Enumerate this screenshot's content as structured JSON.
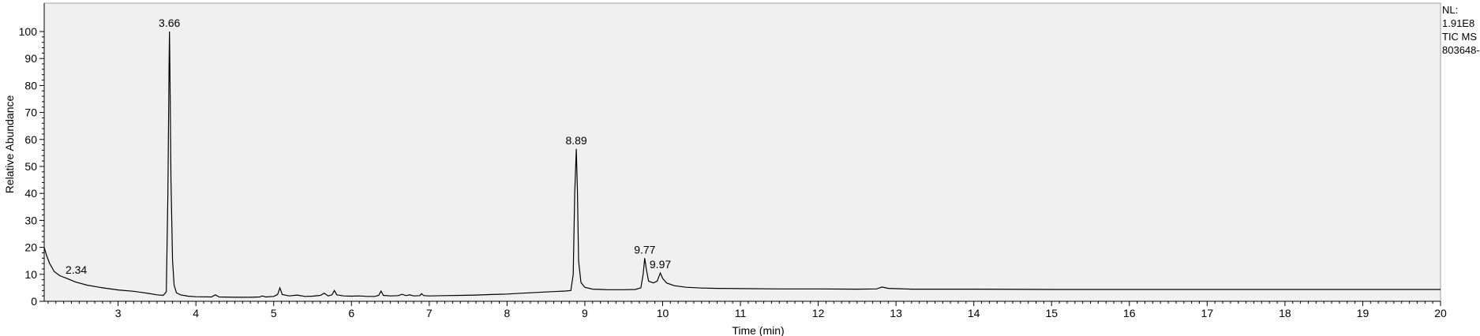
{
  "header": {
    "info_lines": [
      "NL:",
      "1.91E8",
      "TIC MS",
      "803648-"
    ]
  },
  "chart_data": {
    "type": "line",
    "title": "",
    "xlabel": "Time (min)",
    "ylabel": "Relative Abundance",
    "xlim": [
      2.05,
      20.0
    ],
    "ylim": [
      0,
      100
    ],
    "grid": false,
    "x_ticks": [
      3,
      4,
      5,
      6,
      7,
      8,
      9,
      10,
      11,
      12,
      13,
      14,
      15,
      16,
      17,
      18,
      19,
      20
    ],
    "y_ticks": [
      0,
      10,
      20,
      30,
      40,
      50,
      60,
      70,
      80,
      90,
      100
    ],
    "peak_labels": [
      {
        "label": "2.34",
        "x": 2.34,
        "y": 8.5
      },
      {
        "label": "3.66",
        "x": 3.66,
        "y": 100
      },
      {
        "label": "8.89",
        "x": 8.89,
        "y": 56.5
      },
      {
        "label": "9.77",
        "x": 9.77,
        "y": 16
      },
      {
        "label": "9.97",
        "x": 9.97,
        "y": 10.5
      }
    ],
    "series": [
      {
        "line_color": "#000000",
        "points": [
          [
            2.05,
            20
          ],
          [
            2.08,
            17
          ],
          [
            2.12,
            14
          ],
          [
            2.18,
            11
          ],
          [
            2.25,
            9.5
          ],
          [
            2.34,
            8.5
          ],
          [
            2.45,
            7.2
          ],
          [
            2.6,
            6.0
          ],
          [
            2.8,
            5.0
          ],
          [
            3.0,
            4.2
          ],
          [
            3.2,
            3.7
          ],
          [
            3.3,
            3.3
          ],
          [
            3.4,
            2.9
          ],
          [
            3.5,
            2.4
          ],
          [
            3.58,
            2.2
          ],
          [
            3.62,
            3.5
          ],
          [
            3.64,
            40
          ],
          [
            3.655,
            88
          ],
          [
            3.66,
            100
          ],
          [
            3.665,
            88
          ],
          [
            3.68,
            45
          ],
          [
            3.7,
            15
          ],
          [
            3.72,
            6
          ],
          [
            3.75,
            3.2
          ],
          [
            3.8,
            2.4
          ],
          [
            3.9,
            1.9
          ],
          [
            4.0,
            1.7
          ],
          [
            4.2,
            1.6
          ],
          [
            4.25,
            2.4
          ],
          [
            4.3,
            1.6
          ],
          [
            4.5,
            1.5
          ],
          [
            4.7,
            1.5
          ],
          [
            4.82,
            1.6
          ],
          [
            4.85,
            2.0
          ],
          [
            4.9,
            1.6
          ],
          [
            5.0,
            1.8
          ],
          [
            5.05,
            2.5
          ],
          [
            5.08,
            5.0
          ],
          [
            5.11,
            2.5
          ],
          [
            5.2,
            2.0
          ],
          [
            5.3,
            2.3
          ],
          [
            5.4,
            1.8
          ],
          [
            5.5,
            1.9
          ],
          [
            5.6,
            2.2
          ],
          [
            5.65,
            3.0
          ],
          [
            5.7,
            2.0
          ],
          [
            5.75,
            2.4
          ],
          [
            5.78,
            4.0
          ],
          [
            5.81,
            2.4
          ],
          [
            5.9,
            2.0
          ],
          [
            6.0,
            1.9
          ],
          [
            6.1,
            2.0
          ],
          [
            6.2,
            1.8
          ],
          [
            6.3,
            1.8
          ],
          [
            6.35,
            2.2
          ],
          [
            6.38,
            3.8
          ],
          [
            6.41,
            2.2
          ],
          [
            6.5,
            2.0
          ],
          [
            6.6,
            2.1
          ],
          [
            6.65,
            2.6
          ],
          [
            6.7,
            2.1
          ],
          [
            6.75,
            2.4
          ],
          [
            6.8,
            2.0
          ],
          [
            6.88,
            2.1
          ],
          [
            6.9,
            2.8
          ],
          [
            6.93,
            2.1
          ],
          [
            7.0,
            2.0
          ],
          [
            7.2,
            2.1
          ],
          [
            7.4,
            2.2
          ],
          [
            7.6,
            2.3
          ],
          [
            7.8,
            2.5
          ],
          [
            8.0,
            2.7
          ],
          [
            8.2,
            3.0
          ],
          [
            8.4,
            3.3
          ],
          [
            8.6,
            3.6
          ],
          [
            8.75,
            3.8
          ],
          [
            8.82,
            4.0
          ],
          [
            8.85,
            10
          ],
          [
            8.87,
            40
          ],
          [
            8.89,
            56.5
          ],
          [
            8.905,
            40
          ],
          [
            8.92,
            15
          ],
          [
            8.95,
            7
          ],
          [
            9.0,
            5.2
          ],
          [
            9.1,
            4.5
          ],
          [
            9.3,
            4.3
          ],
          [
            9.5,
            4.3
          ],
          [
            9.65,
            4.4
          ],
          [
            9.72,
            5.0
          ],
          [
            9.75,
            10
          ],
          [
            9.77,
            16
          ],
          [
            9.79,
            12
          ],
          [
            9.82,
            7.5
          ],
          [
            9.88,
            6.8
          ],
          [
            9.93,
            7.5
          ],
          [
            9.97,
            10.5
          ],
          [
            10.0,
            8.5
          ],
          [
            10.05,
            6.8
          ],
          [
            10.15,
            5.8
          ],
          [
            10.3,
            5.2
          ],
          [
            10.5,
            4.9
          ],
          [
            10.7,
            4.8
          ],
          [
            11.0,
            4.7
          ],
          [
            11.5,
            4.6
          ],
          [
            12.0,
            4.6
          ],
          [
            12.5,
            4.5
          ],
          [
            12.75,
            4.6
          ],
          [
            12.82,
            5.3
          ],
          [
            12.9,
            4.8
          ],
          [
            13.2,
            4.5
          ],
          [
            14.0,
            4.5
          ],
          [
            15.0,
            4.4
          ],
          [
            16.0,
            4.4
          ],
          [
            17.0,
            4.4
          ],
          [
            18.0,
            4.4
          ],
          [
            19.0,
            4.4
          ],
          [
            20.0,
            4.4
          ]
        ]
      }
    ]
  }
}
